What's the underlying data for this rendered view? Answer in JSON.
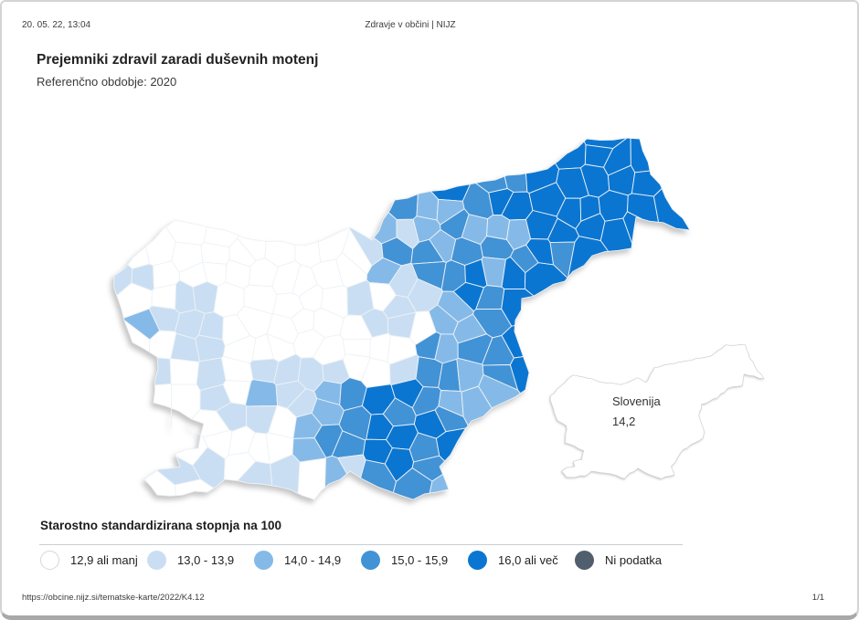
{
  "header": {
    "datetime": "20. 05. 22, 13:04",
    "site": "Zdravje v občini | NIJZ"
  },
  "title": "Prejemniki zdravil zaradi duševnih motenj",
  "subtitle": "Referenčno obdobje: 2020",
  "inset": {
    "label": "Slovenija",
    "value": "14,2"
  },
  "legend": {
    "title": "Starostno standardizirana stopnja na 100",
    "items": [
      {
        "label": "12,9 ali manj",
        "color": "#ffffff"
      },
      {
        "label": "13,0 - 13,9",
        "color": "#c9def2"
      },
      {
        "label": "14,0 - 14,9",
        "color": "#85bae8"
      },
      {
        "label": "15,0 - 15,9",
        "color": "#4292d6"
      },
      {
        "label": "16,0 ali več",
        "color": "#0b76d1"
      },
      {
        "label": "Ni podatka",
        "color": "#515e6e"
      }
    ]
  },
  "map": {
    "type": "choropleth",
    "region": "Slovenija (občine)",
    "national_value": "14,2",
    "palette": [
      "#ffffff",
      "#c9def2",
      "#85bae8",
      "#4292d6",
      "#0b76d1"
    ],
    "no_data_color": "#515e6e",
    "cell_border_color": "#eef2f6",
    "inset_fill": "#ffffff",
    "inset_stroke": "#c6cbd0"
  },
  "footer": {
    "url": "https://obcine.nijz.si/tematske-karte/2022/K4.12",
    "page": "1/1"
  }
}
